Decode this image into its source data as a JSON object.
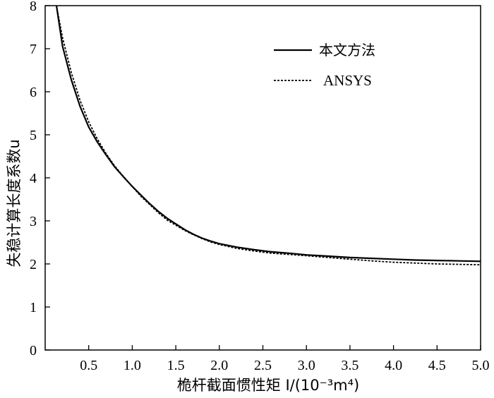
{
  "chart_data": {
    "type": "line",
    "xlabel": "桅杆截面惯性矩 I/(10⁻³m⁴)",
    "ylabel": "失稳计算长度系数u",
    "xlim": [
      0,
      5.0
    ],
    "ylim": [
      0,
      8
    ],
    "xticks": [
      "0.5",
      "1.0",
      "1.5",
      "2.0",
      "2.5",
      "3.0",
      "3.5",
      "4.0",
      "4.5",
      "5.0"
    ],
    "xtick_values": [
      0.5,
      1.0,
      1.5,
      2.0,
      2.5,
      3.0,
      3.5,
      4.0,
      4.5,
      5.0
    ],
    "yticks": [
      "0",
      "1",
      "2",
      "3",
      "4",
      "5",
      "6",
      "7",
      "8"
    ],
    "ytick_values": [
      0,
      1,
      2,
      3,
      4,
      5,
      6,
      7,
      8
    ],
    "grid": false,
    "legend_position": "top-right",
    "series": [
      {
        "name": "本文方法",
        "style": "solid",
        "x": [
          0.13,
          0.2,
          0.3,
          0.4,
          0.5,
          0.6,
          0.7,
          0.8,
          0.9,
          1.0,
          1.1,
          1.2,
          1.3,
          1.4,
          1.5,
          1.6,
          1.7,
          1.8,
          1.9,
          2.0,
          2.2,
          2.4,
          2.6,
          2.8,
          3.0,
          3.25,
          3.5,
          3.75,
          4.0,
          4.25,
          4.5,
          4.75,
          5.0
        ],
        "y": [
          8.0,
          7.05,
          6.28,
          5.66,
          5.18,
          4.83,
          4.53,
          4.25,
          4.02,
          3.8,
          3.6,
          3.4,
          3.22,
          3.06,
          2.93,
          2.8,
          2.69,
          2.6,
          2.53,
          2.47,
          2.39,
          2.33,
          2.28,
          2.25,
          2.21,
          2.18,
          2.15,
          2.13,
          2.11,
          2.09,
          2.08,
          2.07,
          2.06
        ]
      },
      {
        "name": "ANSYS",
        "style": "dashed",
        "x": [
          0.13,
          0.2,
          0.3,
          0.4,
          0.5,
          0.6,
          0.7,
          0.8,
          0.9,
          1.0,
          1.1,
          1.2,
          1.3,
          1.4,
          1.5,
          1.6,
          1.7,
          1.8,
          1.9,
          2.0,
          2.2,
          2.4,
          2.6,
          2.8,
          3.0,
          3.25,
          3.5,
          3.75,
          4.0,
          4.25,
          4.5,
          4.75,
          5.0
        ],
        "y": [
          8.0,
          7.25,
          6.45,
          5.8,
          5.3,
          4.9,
          4.56,
          4.27,
          4.03,
          3.8,
          3.57,
          3.38,
          3.19,
          3.02,
          2.9,
          2.78,
          2.68,
          2.59,
          2.51,
          2.45,
          2.36,
          2.3,
          2.25,
          2.22,
          2.19,
          2.15,
          2.11,
          2.07,
          2.04,
          2.02,
          2.0,
          1.99,
          1.98
        ]
      }
    ]
  }
}
